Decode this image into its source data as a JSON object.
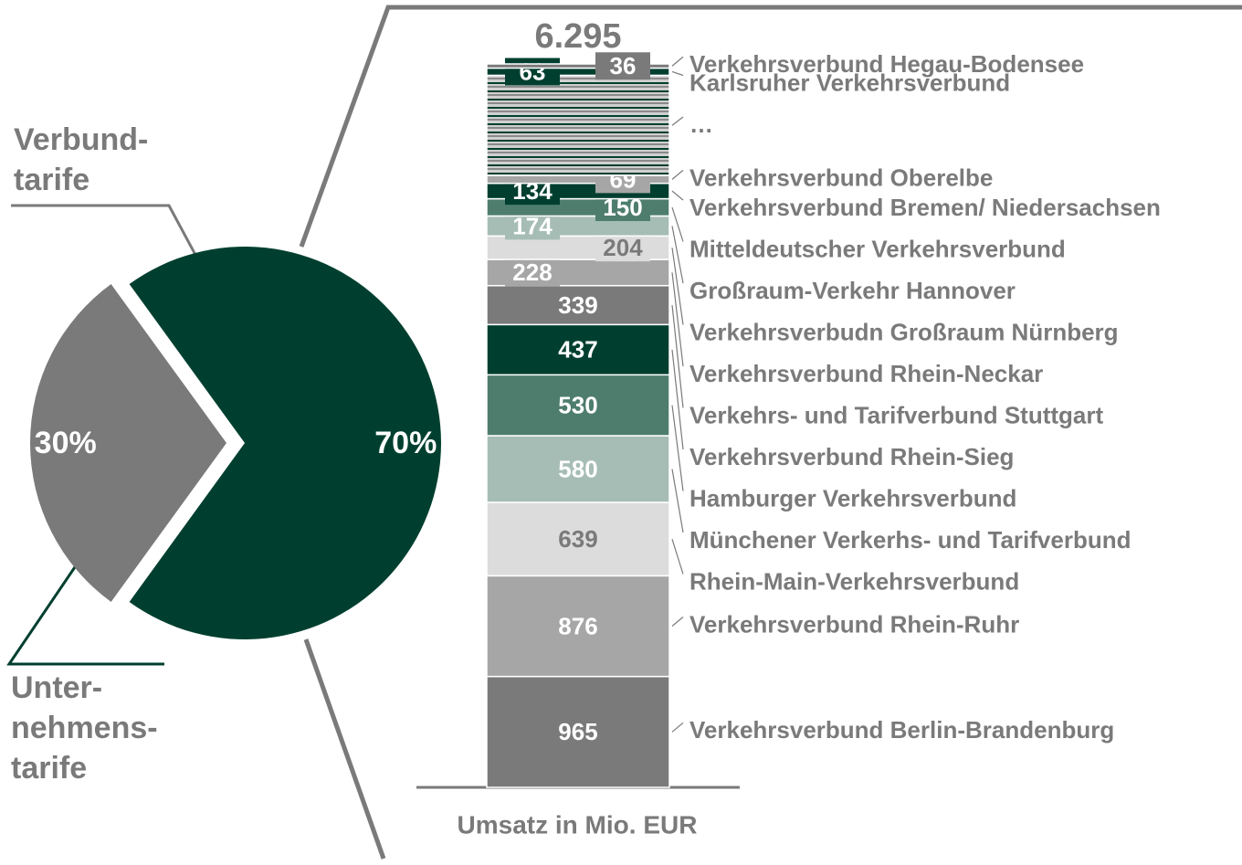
{
  "chart_data": [
    {
      "type": "pie",
      "labels": [
        [
          "Verbund-",
          "tarife"
        ],
        [
          "Unter-",
          "nehmens-",
          "tarife"
        ]
      ],
      "values": [
        70,
        30
      ],
      "value_labels": [
        "70%",
        "30%"
      ],
      "colors": [
        "#003f2f",
        "#7a7a7a"
      ]
    },
    {
      "type": "bar",
      "stacked": true,
      "total": 6295,
      "total_label": "6.295",
      "x_label": "Umsatz in Mio. EUR",
      "series": [
        {
          "name": "Verkehrsverbund Berlin-Brandenburg",
          "color": "#7a7a7a",
          "values": [
            965
          ]
        },
        {
          "name": "Verkehrsverbund Rhein-Ruhr",
          "color": "#a6a6a6",
          "values": [
            876
          ]
        },
        {
          "name": "Rhein-Main-Verkehrsverbund",
          "color": "#dcdcdc",
          "values": [
            639
          ]
        },
        {
          "name": "Münchener Verkerhs- und Tarifverbund",
          "color": "#a6bdb5",
          "values": [
            580
          ]
        },
        {
          "name": "Hamburger Verkehrsverbund",
          "color": "#4e7d6d",
          "values": [
            530
          ]
        },
        {
          "name": "Verkehrsverbund Rhein-Sieg",
          "color": "#003f2f",
          "values": [
            437
          ]
        },
        {
          "name": "Verkehrs- und Tarifverbund Stuttgart",
          "color": "#7a7a7a",
          "values": [
            339
          ]
        },
        {
          "name": "Verkehrsverbund Rhein-Neckar",
          "color": "#a6a6a6",
          "values": [
            228
          ]
        },
        {
          "name": "Verkehrsverbudn Großraum Nürnberg",
          "color": "#dcdcdc",
          "values": [
            204
          ]
        },
        {
          "name": "Großraum-Verkehr Hannover",
          "color": "#a6bdb5",
          "values": [
            174
          ]
        },
        {
          "name": "Mitteldeutscher Verkehrsverbund",
          "color": "#4e7d6d",
          "values": [
            150
          ]
        },
        {
          "name": "Verkehrsverbund Bremen/ Niedersachsen",
          "color": "#003f2f",
          "values": [
            134
          ]
        },
        {
          "name": "Verkehrsverbund Oberelbe",
          "color": "#a6a6a6",
          "values": [
            69
          ]
        },
        {
          "name": "…",
          "color": "#c8c8c8",
          "values": [
            871
          ],
          "hatch": true,
          "show_label": false
        },
        {
          "name": "Karlsruher Verkehrsverbund",
          "color": "#003f2f",
          "values": [
            63
          ]
        },
        {
          "name": "Verkehrsverbund Hegau-Bodensee",
          "color": "#7a7a7a",
          "values": [
            36
          ]
        }
      ]
    }
  ]
}
